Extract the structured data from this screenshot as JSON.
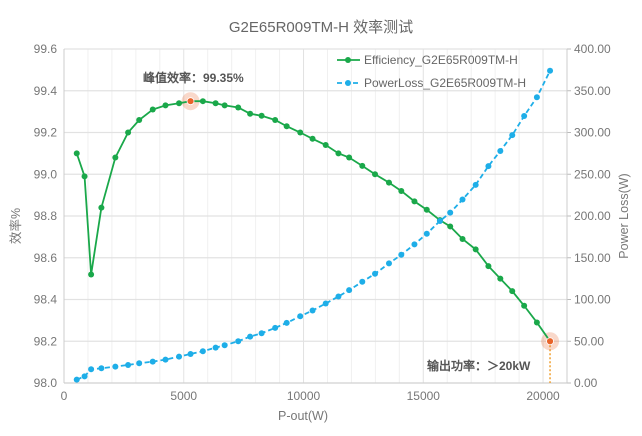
{
  "chart_data": {
    "type": "line",
    "title": "G2E65R009TM-H 效率测试",
    "xlabel": "P-out(W)",
    "ylabel": "效率%",
    "y2label": "Power Loss(W)",
    "xlim": [
      0,
      21000
    ],
    "ylim": [
      98.0,
      99.6
    ],
    "y2lim": [
      0,
      400
    ],
    "xticks": [
      "0",
      "5000",
      "10000",
      "15000",
      "20000"
    ],
    "yticks": [
      "98.0",
      "98.2",
      "98.4",
      "98.6",
      "98.8",
      "99.0",
      "99.2",
      "99.4",
      "99.6"
    ],
    "y2ticks": [
      "0.00",
      "50.00",
      "100.00",
      "150.00",
      "200.00",
      "250.00",
      "300.00",
      "350.00",
      "400.00"
    ],
    "grid": true,
    "legend_position": "top-right",
    "series": [
      {
        "name": "Efficiency_G2E65R009TM-H",
        "axis": "left",
        "color": "#1aa84a",
        "style": "solid",
        "x": [
          532,
          858,
          1132,
          1561,
          2144,
          2676,
          3139,
          3705,
          4237,
          4803,
          5283,
          5798,
          6330,
          6707,
          7273,
          7770,
          8250,
          8816,
          9297,
          9863,
          10377,
          10926,
          11458,
          11904,
          12453,
          12985,
          13568,
          14082,
          14631,
          15146,
          15695,
          16124,
          16638,
          17187,
          17719,
          18216,
          18714,
          19211,
          19743,
          20292
        ],
        "y": [
          99.1,
          98.99,
          98.52,
          98.84,
          99.08,
          99.2,
          99.26,
          99.31,
          99.33,
          99.34,
          99.35,
          99.35,
          99.34,
          99.33,
          99.32,
          99.29,
          99.28,
          99.26,
          99.23,
          99.2,
          99.17,
          99.14,
          99.1,
          99.08,
          99.04,
          99.0,
          98.96,
          98.92,
          98.87,
          98.83,
          98.78,
          98.75,
          98.69,
          98.64,
          98.56,
          98.5,
          98.44,
          98.37,
          98.29,
          98.2
        ]
      },
      {
        "name": "PowerLoss_G2E65R009TM-H",
        "axis": "right",
        "color": "#1eaee8",
        "style": "dashed",
        "x": [
          532,
          858,
          1132,
          1561,
          2144,
          2676,
          3139,
          3705,
          4237,
          4803,
          5283,
          5798,
          6330,
          6707,
          7273,
          7770,
          8250,
          8816,
          9297,
          9863,
          10377,
          10926,
          11458,
          11904,
          12453,
          12985,
          13568,
          14082,
          14631,
          15146,
          15695,
          16124,
          16638,
          17187,
          17719,
          18216,
          18714,
          19211,
          19743,
          20292
        ],
        "y": [
          4,
          8,
          16.4,
          17.6,
          19.6,
          21.6,
          23.6,
          25.6,
          28,
          31.6,
          34.8,
          38,
          42.4,
          45.2,
          50,
          55.6,
          59.6,
          66,
          72,
          80,
          86.8,
          95.2,
          103.6,
          111.2,
          121.2,
          130.8,
          143.2,
          153.6,
          166,
          178.8,
          194,
          204,
          219.7,
          237.3,
          259.8,
          277.9,
          296.8,
          319.7,
          342.2,
          373.9
        ]
      }
    ],
    "annotations": [
      {
        "text": "峰值效率：99.35%",
        "x": 5283,
        "y": 99.35
      },
      {
        "text": "输出功率：＞20kW",
        "x": 20292,
        "y": 98.2
      }
    ],
    "highlight_color": "#e8632a"
  }
}
